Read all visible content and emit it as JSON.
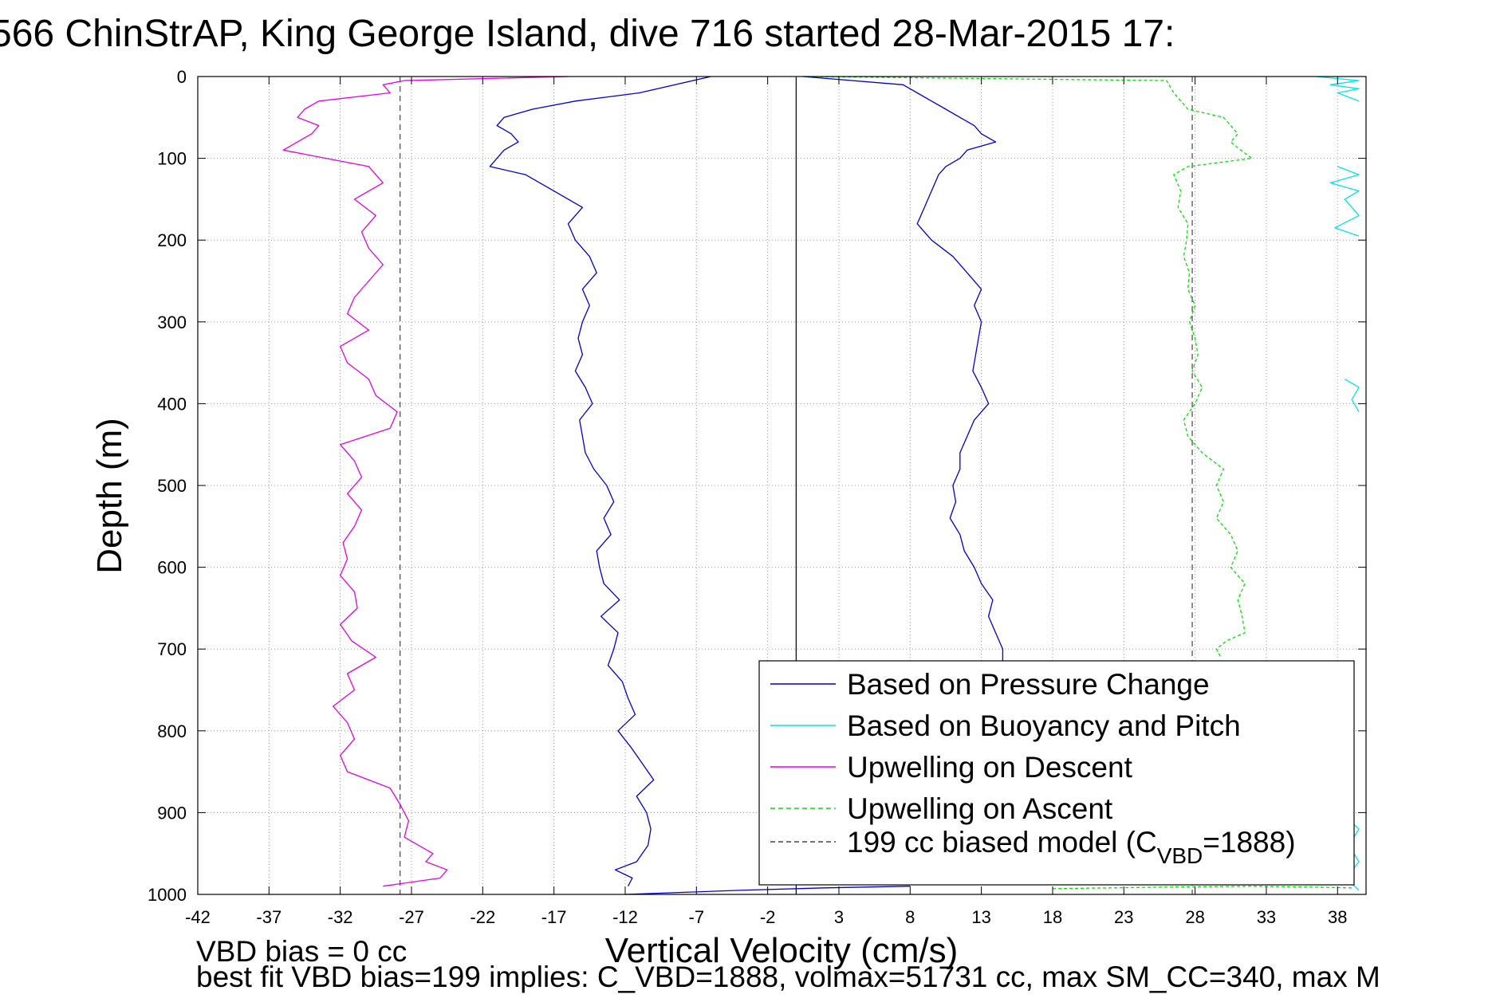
{
  "chart_data": {
    "type": "line",
    "title": "566 ChinStrAP, King George Island, dive 716 started 28-Mar-2015 17:",
    "xlabel": "Vertical Velocity (cm/s)",
    "ylabel": "Depth (m)",
    "xlim": [
      -42,
      40
    ],
    "ylim": [
      1000,
      0
    ],
    "y_reversed": true,
    "grid": true,
    "x_ticks": [
      "-42",
      "-37",
      "-32",
      "-27",
      "-22",
      "-17",
      "-12",
      "-7",
      "-2",
      "3",
      "8",
      "13",
      "18",
      "23",
      "28",
      "33",
      "38"
    ],
    "y_ticks": [
      "0",
      "100",
      "200",
      "300",
      "400",
      "500",
      "600",
      "700",
      "800",
      "900",
      "1000"
    ],
    "legend_position": "bottom-right",
    "legend": {
      "pressure": "Based on Pressure Change",
      "buoyancy": "Based on Buoyancy and Pitch",
      "up_descent": "Upwelling on Descent",
      "up_ascent": "Upwelling on Ascent",
      "model_prefix": "199 cc biased model (C",
      "model_sub": "VBD",
      "model_suffix": "=1888)"
    },
    "footer": {
      "line1": "VBD bias = 0 cc",
      "line2": "best fit VBD bias=199 implies: C_VBD=1888, volmax=51731 cc, max SM_CC=340, max M"
    },
    "colors": {
      "pressure": "#0000cc",
      "buoyancy": "#00e5e5",
      "up_descent": "#e600e6",
      "up_ascent": "#00e600",
      "model": "#444444"
    },
    "reference_lines": {
      "zero": 0,
      "model_neg": -27.8,
      "model_pos": 27.8
    },
    "series": [
      {
        "key": "pressure_descent",
        "color": "#0000cc",
        "dash": "none",
        "x": [
          -6,
          -11,
          -15.5,
          -18.5,
          -20.5,
          -21,
          -20,
          -19.5,
          -20.5,
          -21,
          -21.5,
          -19,
          -17,
          -15,
          -16,
          -15.5,
          -14.5,
          -14,
          -15,
          -14.5,
          -15,
          -15.3,
          -15,
          -15.5,
          -14.8,
          -14.3,
          -15.2,
          -15,
          -14.8,
          -14.2,
          -13.3,
          -12.8,
          -13.5,
          -13,
          -14,
          -13.8,
          -13.5,
          -12.4,
          -13.7,
          -12.5,
          -12.8,
          -13.2,
          -12.2,
          -11.8,
          -11.3,
          -12.5,
          -11.6,
          -10.8,
          -10,
          -11.2,
          -10.5,
          -10.2,
          -10.4,
          -11.2,
          -12.7,
          -11.5,
          -11.8
        ],
        "y": [
          0,
          20,
          30,
          40,
          50,
          60,
          70,
          80,
          90,
          100,
          110,
          120,
          140,
          160,
          180,
          200,
          220,
          240,
          260,
          280,
          300,
          320,
          340,
          360,
          380,
          400,
          420,
          440,
          460,
          480,
          500,
          520,
          540,
          560,
          580,
          600,
          620,
          640,
          660,
          680,
          700,
          720,
          740,
          760,
          780,
          800,
          820,
          840,
          860,
          880,
          900,
          920,
          940,
          960,
          970,
          980,
          990
        ]
      },
      {
        "key": "pressure_ascent",
        "color": "#0000cc",
        "dash": "none",
        "x": [
          0.5,
          7.5,
          8.5,
          9.5,
          10.5,
          11.5,
          12.5,
          13,
          14,
          12,
          11.5,
          10.5,
          10,
          9.5,
          9,
          8.5,
          9.5,
          11,
          12,
          13,
          12.5,
          13,
          12.8,
          12.6,
          12.4,
          13,
          13.5,
          12.5,
          12,
          11.5,
          11.5,
          11,
          11.2,
          10.8,
          11.5,
          11.8,
          12.5,
          13,
          13.8,
          13.5,
          14,
          14.5,
          14.5
        ],
        "y": [
          0,
          10,
          20,
          30,
          40,
          50,
          60,
          70,
          80,
          90,
          100,
          110,
          120,
          140,
          160,
          180,
          200,
          220,
          240,
          260,
          280,
          300,
          320,
          340,
          360,
          380,
          400,
          420,
          440,
          460,
          480,
          500,
          520,
          540,
          560,
          580,
          600,
          620,
          640,
          660,
          680,
          700,
          715
        ]
      },
      {
        "key": "pressure_bottom",
        "color": "#0000cc",
        "dash": "none",
        "x": [
          -12,
          -4,
          2,
          8
        ],
        "y": [
          1000,
          995,
          992,
          990
        ]
      },
      {
        "key": "upwelling_descent",
        "color": "#e600e6",
        "dash": "none",
        "x": [
          -16,
          -27.5,
          -29,
          -28.5,
          -33.5,
          -34.5,
          -35,
          -33.5,
          -34,
          -36,
          -33,
          -30,
          -29,
          -31,
          -29.5,
          -30.5,
          -30,
          -29,
          -30,
          -31,
          -31.5,
          -30,
          -32,
          -31.5,
          -30,
          -29.5,
          -28,
          -28.5,
          -32,
          -31,
          -30.5,
          -31.5,
          -30.5,
          -31,
          -31.8,
          -31.5,
          -32,
          -31,
          -30.8,
          -32,
          -31.2,
          -29.5,
          -31.5,
          -31,
          -32.5,
          -31.5,
          -31,
          -32,
          -31.5,
          -28.5,
          -27.8,
          -27.2,
          -27.5,
          -25.5,
          -26,
          -24.5,
          -25,
          -29
        ],
        "y": [
          0,
          5,
          10,
          20,
          30,
          40,
          50,
          60,
          70,
          90,
          100,
          110,
          130,
          150,
          170,
          190,
          210,
          230,
          250,
          270,
          290,
          310,
          330,
          350,
          370,
          390,
          410,
          430,
          450,
          470,
          490,
          510,
          530,
          550,
          570,
          590,
          610,
          630,
          650,
          670,
          690,
          710,
          730,
          750,
          770,
          790,
          810,
          830,
          850,
          870,
          890,
          910,
          930,
          950,
          960,
          970,
          980,
          990
        ]
      },
      {
        "key": "upwelling_ascent",
        "color": "#00e600",
        "dash": "4,3",
        "x": [
          0.5,
          26,
          26.5,
          27.5,
          30,
          30.5,
          31,
          30.5,
          31.2,
          32,
          27.5,
          26.5,
          27,
          26.8,
          27.5,
          27.4,
          27.2,
          27.6,
          27.5,
          28,
          27.6,
          28,
          28.2,
          27.8,
          28.5,
          28,
          27.2,
          27.5,
          28.5,
          30,
          29.5,
          30,
          29.5,
          30.5,
          31,
          30.5,
          31.5,
          31,
          31.3,
          31.5,
          30.2,
          29.5,
          29.8
        ],
        "y": [
          0,
          5,
          20,
          40,
          50,
          60,
          70,
          80,
          90,
          100,
          110,
          120,
          140,
          160,
          180,
          200,
          220,
          240,
          260,
          280,
          300,
          320,
          340,
          360,
          380,
          400,
          420,
          440,
          460,
          480,
          500,
          520,
          540,
          560,
          580,
          600,
          620,
          640,
          660,
          680,
          690,
          700,
          710
        ]
      },
      {
        "key": "upwelling_ascent_bottom",
        "color": "#00e600",
        "dash": "4,3",
        "x": [
          18,
          26,
          32,
          36,
          39
        ],
        "y": [
          993,
          991,
          990,
          991,
          992
        ]
      },
      {
        "key": "buoyancy_1",
        "color": "#00e5e5",
        "dash": "none",
        "x": [
          36.5,
          39.5,
          37.5,
          39.5,
          38,
          39.5
        ],
        "y": [
          0,
          5,
          10,
          15,
          20,
          30
        ]
      },
      {
        "key": "buoyancy_2",
        "color": "#00e5e5",
        "dash": "none",
        "x": [
          38,
          39.5,
          37.5,
          39.5,
          38.5,
          39.5,
          37.8,
          39.5
        ],
        "y": [
          110,
          120,
          130,
          140,
          150,
          170,
          185,
          195
        ]
      },
      {
        "key": "buoyancy_3",
        "color": "#00e5e5",
        "dash": "none",
        "x": [
          38.5,
          39.5,
          39,
          39.5
        ],
        "y": [
          370,
          380,
          395,
          410
        ]
      },
      {
        "key": "buoyancy_4",
        "color": "#00e5e5",
        "dash": "none",
        "x": [
          38.5,
          39.5,
          38.8,
          39.5,
          38.6,
          39.5
        ],
        "y": [
          905,
          920,
          940,
          960,
          980,
          995
        ]
      }
    ]
  }
}
